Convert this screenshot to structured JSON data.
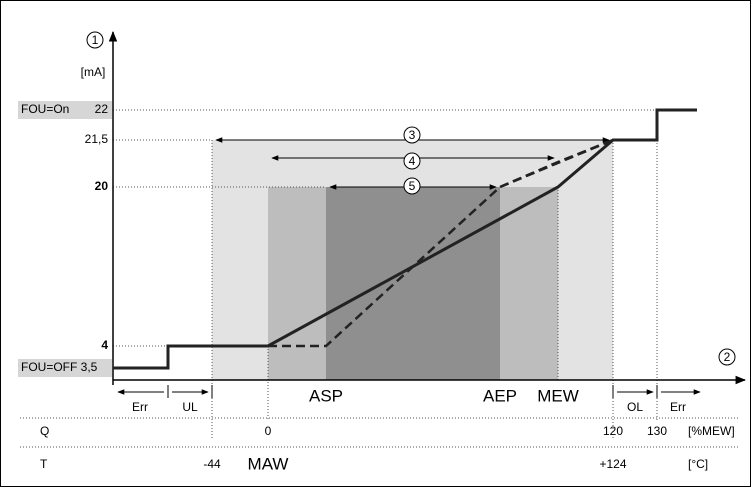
{
  "axes": {
    "y_marker": "1",
    "y_unit": "[mA]",
    "x_marker": "2"
  },
  "levels": {
    "fou_on": "FOU=On",
    "v22": "22",
    "v21_5": "21,5",
    "v20": "20",
    "v4": "4",
    "fou_off": "FOU=OFF 3,5"
  },
  "ranges": {
    "r3": "3",
    "r4": "4",
    "r5": "5"
  },
  "points": {
    "asp": "ASP",
    "aep": "AEP",
    "mew": "MEW",
    "maw": "MAW"
  },
  "zones": {
    "err_low": "Err",
    "ul": "UL",
    "ol": "OL",
    "err_high": "Err"
  },
  "rows": {
    "q": {
      "label": "Q",
      "v0": "0",
      "v120": "120",
      "v130": "130",
      "unit": "[%MEW]"
    },
    "t": {
      "label": "T",
      "vm44": "-44",
      "v124": "+124",
      "unit": "[°C]"
    }
  }
}
